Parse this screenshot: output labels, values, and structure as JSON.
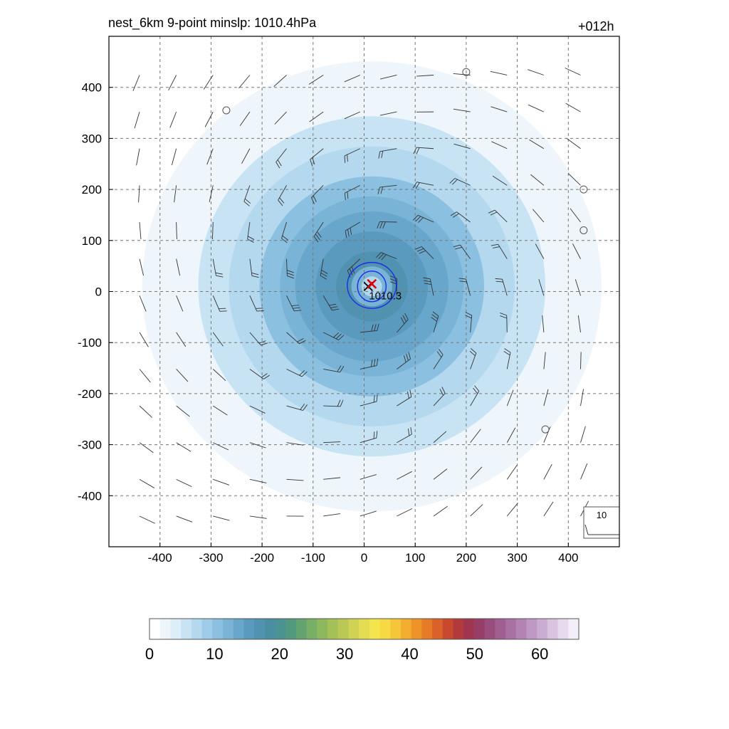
{
  "title_left": "nest_6km  9-point minslp: 1010.4hPa",
  "title_right": "+012h",
  "chart_data": {
    "type": "heatmap",
    "xlim": [
      -500,
      500
    ],
    "ylim": [
      -500,
      500
    ],
    "x_ticks": [
      -400,
      -300,
      -200,
      -100,
      0,
      100,
      200,
      300,
      400
    ],
    "y_ticks": [
      400,
      300,
      200,
      100,
      0,
      -100,
      -200,
      -300,
      -400
    ],
    "x_tick_labels": [
      "-400",
      "-300",
      "-200",
      "-100",
      "0",
      "100",
      "200",
      "300",
      "400"
    ],
    "y_tick_labels": [
      "400",
      "300",
      "200",
      "100",
      "0",
      "-100",
      "-200",
      "-300",
      "-400"
    ],
    "grid": true,
    "field": {
      "center": [
        15,
        10
      ],
      "description_levels": [
        {
          "radius": 450,
          "value": 2
        },
        {
          "radius": 400,
          "value": 3
        },
        {
          "radius": 340,
          "value": 5
        },
        {
          "radius": 280,
          "value": 7
        },
        {
          "radius": 220,
          "value": 10
        },
        {
          "radius": 180,
          "value": 12
        },
        {
          "radius": 150,
          "value": 14
        },
        {
          "radius": 110,
          "value": 16
        },
        {
          "radius": 70,
          "value": 17
        },
        {
          "radius": 40,
          "value": 12
        },
        {
          "radius": 20,
          "value": 8
        }
      ]
    },
    "pressure_contours": [
      {
        "center": [
          15,
          12
        ],
        "rx": 48,
        "ry": 45
      },
      {
        "center": [
          15,
          10
        ],
        "rx": 28,
        "ry": 30
      }
    ],
    "min_pressure_marker": {
      "x": 8,
      "y": 10,
      "label": "1010.3"
    },
    "red_x_marker": {
      "x": 15,
      "y": 15
    },
    "calm_circles": [
      [
        200,
        430
      ],
      [
        -270,
        355
      ],
      [
        430,
        200
      ],
      [
        430,
        120
      ],
      [
        355,
        -270
      ]
    ],
    "barb_reference_label": "10",
    "colorbar": {
      "min": 0,
      "max": 66,
      "tick_labels": [
        "0",
        "10",
        "20",
        "30",
        "40",
        "50",
        "60"
      ],
      "tick_values": [
        0,
        10,
        20,
        30,
        40,
        50,
        60
      ],
      "colors": [
        "#ffffff",
        "#eef6fb",
        "#dceef8",
        "#c8e4f4",
        "#b4d9ef",
        "#9fcce8",
        "#8bc0e0",
        "#79b3d6",
        "#69a6cb",
        "#5b9abf",
        "#5092b0",
        "#4a8ea1",
        "#4a9392",
        "#53997f",
        "#63a370",
        "#78ae65",
        "#8eb85d",
        "#a4c158",
        "#bac955",
        "#d0d254",
        "#e4dc53",
        "#f4e54f",
        "#f7da43",
        "#f6c639",
        "#f3ae2f",
        "#ee9328",
        "#e67a27",
        "#da6129",
        "#c8492d",
        "#b33a3c",
        "#a03550",
        "#963e66",
        "#994d7c",
        "#a05f90",
        "#a971a2",
        "#b384b3",
        "#bf98c3",
        "#cbadd2",
        "#d9c3e1",
        "#e7daee",
        "#f4eef8"
      ]
    }
  }
}
